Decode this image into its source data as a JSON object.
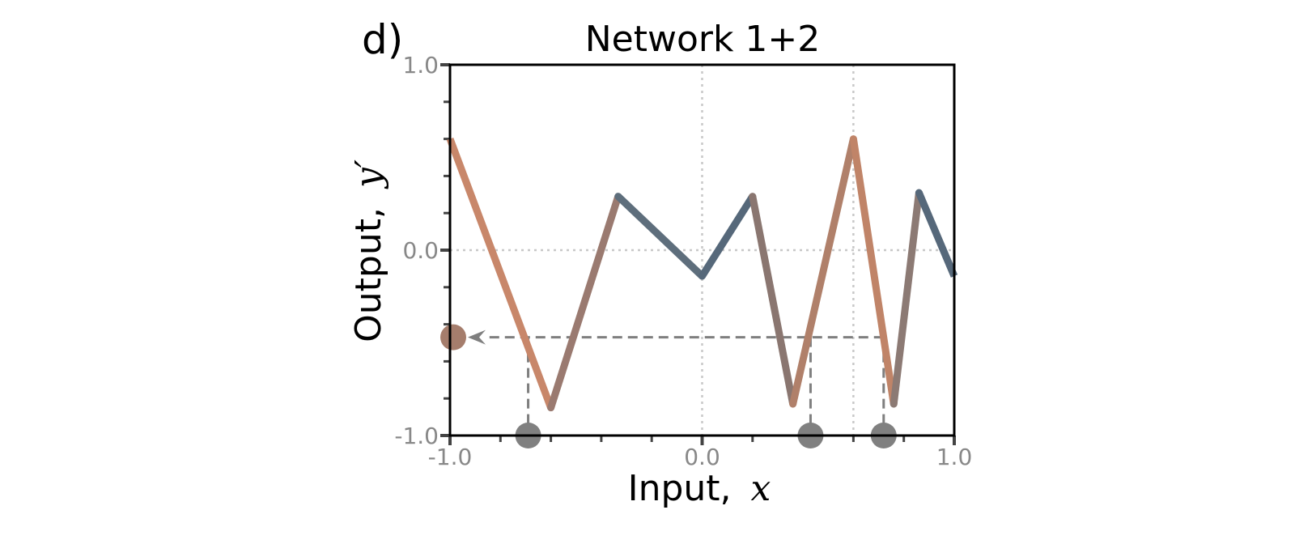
{
  "chart_data": {
    "type": "line",
    "panel_label": "d)",
    "title": "Network 1+2",
    "xlabel": "Input,",
    "xlabel_var": "x",
    "ylabel": "Output,",
    "ylabel_var": "y′",
    "xlim": [
      -1.0,
      1.0
    ],
    "ylim": [
      -1.0,
      1.0
    ],
    "x_tick_labels": [
      "-1.0",
      "0.0",
      "1.0"
    ],
    "y_tick_labels": [
      "-1.0",
      "0.0",
      "1.0"
    ],
    "x_minor_ticks": [
      -0.8,
      -0.6,
      -0.4,
      -0.2,
      0.2,
      0.4,
      0.6,
      0.8
    ],
    "y_minor_ticks": [
      -0.8,
      -0.6,
      -0.4,
      -0.2,
      0.2,
      0.4,
      0.6,
      0.8
    ],
    "grid_x": [
      0.0,
      0.6
    ],
    "grid_y": [
      0.0
    ],
    "grid": true,
    "series": [
      {
        "x": [
          -1.0,
          -0.6,
          -0.333,
          0.0,
          0.2,
          0.36,
          0.6,
          0.76,
          0.86,
          1.0
        ],
        "y": [
          0.6,
          -0.85,
          0.29,
          -0.14,
          0.29,
          -0.83,
          0.6,
          -0.83,
          0.31,
          -0.14
        ],
        "segment_colors": [
          "#c8876a",
          "#9a7a70",
          "#5e6e7c",
          "#56687a",
          "#8a7670",
          "#b0806a",
          "#c08468",
          "#8c7a74",
          "#56687a"
        ]
      }
    ],
    "preimage_points": {
      "x": [
        -0.69,
        0.43,
        0.72
      ],
      "y": -1.0,
      "color": "#808080"
    },
    "output_point": {
      "x": -1.0,
      "y": -0.47,
      "color": "#a57d6c"
    },
    "dashed_color": "#7f7f7f"
  }
}
